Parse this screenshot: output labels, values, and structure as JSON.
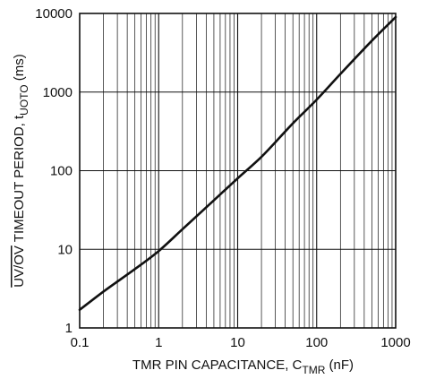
{
  "chart_data": {
    "type": "line",
    "x_scale": "log",
    "y_scale": "log",
    "xlim": [
      0.1,
      1000
    ],
    "ylim": [
      1,
      10000
    ],
    "grid": true,
    "x_tick_labels": [
      "0.1",
      "1",
      "10",
      "100",
      "1000"
    ],
    "y_tick_labels": [
      "1",
      "10",
      "100",
      "1000",
      "10000"
    ],
    "x": [
      0.1,
      0.2,
      0.5,
      1,
      2,
      5,
      10,
      20,
      50,
      100,
      200,
      500,
      1000
    ],
    "y": [
      1.7,
      2.9,
      5.6,
      9.5,
      18,
      42,
      80,
      150,
      400,
      800,
      1700,
      4500,
      9000
    ],
    "xlabel": {
      "main": "TMR PIN CAPACITANCE, C",
      "sub": "TMR",
      "unit": " (nF)"
    },
    "ylabel": {
      "overlined": "UV/OV",
      "main": " TIMEOUT PERIOD, t",
      "sub": "UOTO",
      "unit": " (ms)"
    },
    "colors": {
      "line": "#111111",
      "grid": "#111111",
      "axis": "#111111"
    }
  }
}
